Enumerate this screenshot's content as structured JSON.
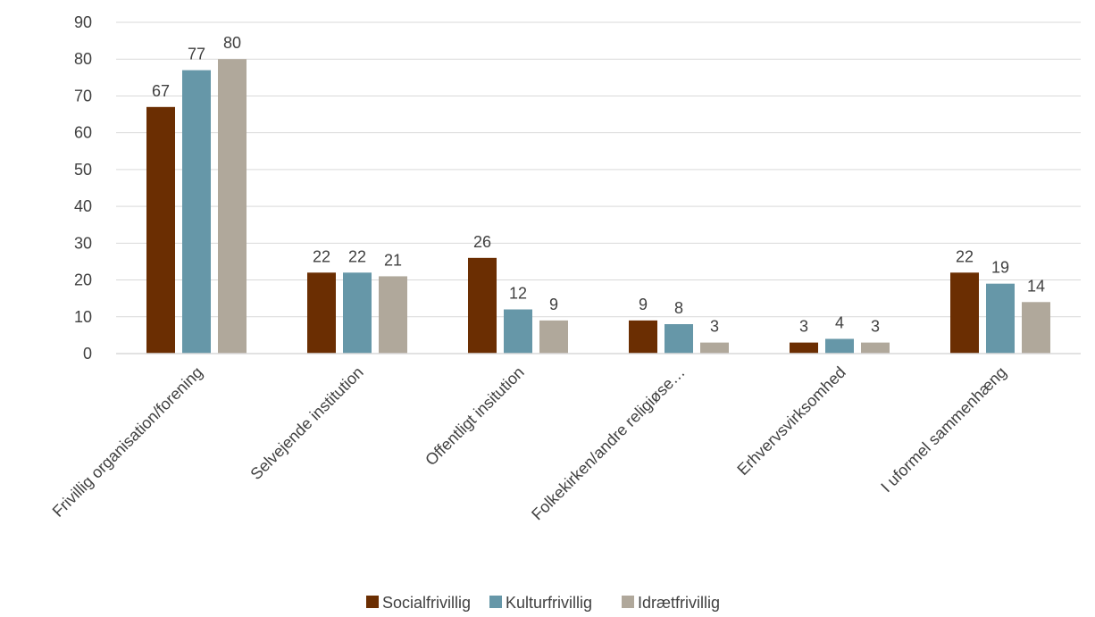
{
  "chart_data": {
    "type": "bar",
    "title": "",
    "xlabel": "",
    "ylabel": "",
    "ylim": [
      0,
      90
    ],
    "yticks": [
      0,
      10,
      20,
      30,
      40,
      50,
      60,
      70,
      80,
      90
    ],
    "grid": true,
    "legend_position": "bottom",
    "categories": [
      "Frivillig organisation/forening",
      "Selvejende institution",
      "Offentligt insitution",
      "Folkekirken/andre religiøse…",
      "Erhvervsvirksomhed",
      "I uformel sammenhæng"
    ],
    "series": [
      {
        "name": "Socialfrivillig",
        "color": "#6b2e02",
        "values": [
          67,
          22,
          26,
          9,
          3,
          22
        ]
      },
      {
        "name": "Kulturfrivillig",
        "color": "#6697a8",
        "values": [
          77,
          22,
          12,
          8,
          4,
          19
        ]
      },
      {
        "name": "Idrætfrivillig",
        "color": "#b0a89b",
        "values": [
          80,
          21,
          9,
          3,
          3,
          14
        ]
      }
    ]
  }
}
